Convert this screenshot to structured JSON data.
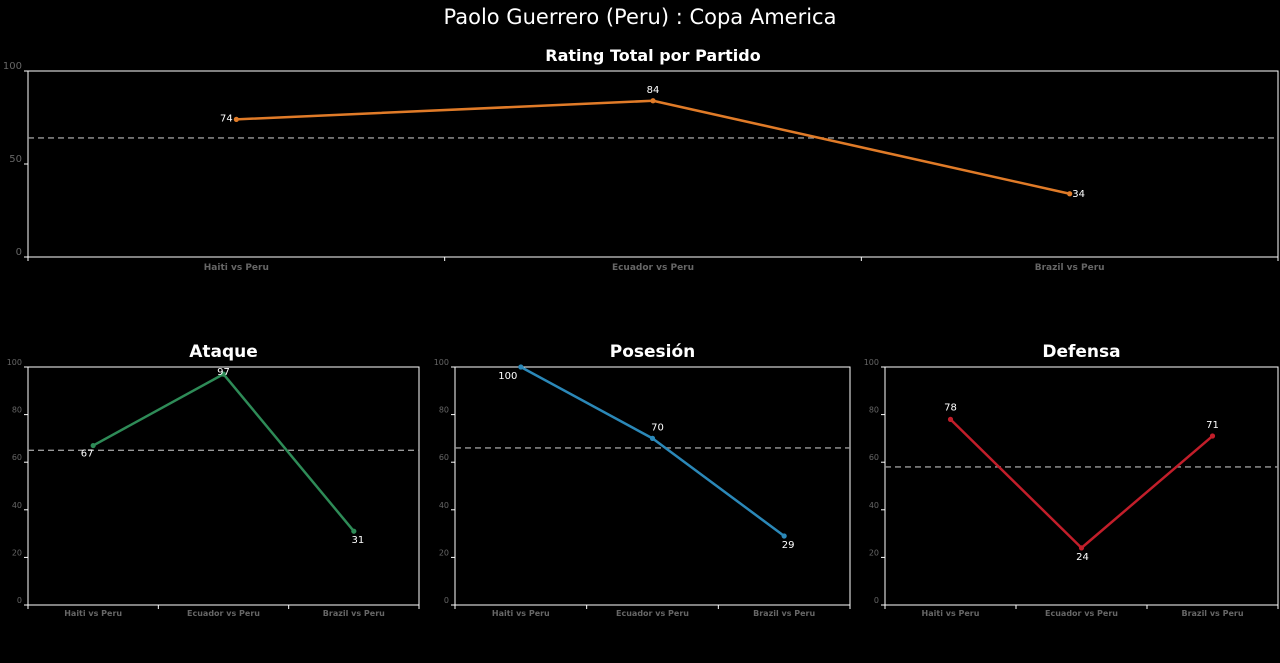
{
  "suptitle": "Paolo Guerrero (Peru) :  Copa  America",
  "colors": {
    "background": "#000000",
    "axes": "#ffffff",
    "tick_label": "#666666",
    "mean_line": "#999999",
    "total": "#e07b28",
    "ataque": "#2e8b57",
    "posesion": "#2b88b8",
    "defensa": "#c21e2a"
  },
  "chart_data": [
    {
      "id": "total",
      "type": "line",
      "title": "Rating Total por Partido",
      "categories": [
        "Haiti vs Peru",
        "Ecuador vs Peru",
        "Brazil vs Peru"
      ],
      "values": [
        74,
        84,
        34
      ],
      "value_labels": [
        "74",
        "84",
        "34"
      ],
      "mean_line": 64,
      "ylim": [
        0,
        100
      ],
      "yticks": [
        0,
        50,
        100
      ],
      "ytick_labels": [
        "0",
        "50",
        "100"
      ],
      "xlabel": "",
      "ylabel": "",
      "color_key": "total"
    },
    {
      "id": "ataque",
      "type": "line",
      "title": "Ataque",
      "categories": [
        "Haiti vs Peru",
        "Ecuador vs Peru",
        "Brazil vs Peru"
      ],
      "values": [
        67,
        97,
        31
      ],
      "value_labels": [
        "67",
        "97",
        "31"
      ],
      "mean_line": 65,
      "ylim": [
        0,
        100
      ],
      "yticks": [
        0,
        20,
        40,
        60,
        80,
        100
      ],
      "ytick_labels": [
        "0",
        "20",
        "40",
        "60",
        "80",
        "100"
      ],
      "xlabel": "",
      "ylabel": "",
      "color_key": "ataque"
    },
    {
      "id": "posesion",
      "type": "line",
      "title": "Posesión",
      "categories": [
        "Haiti vs Peru",
        "Ecuador vs Peru",
        "Brazil vs Peru"
      ],
      "values": [
        100,
        70,
        29
      ],
      "value_labels": [
        "100",
        "70",
        "29"
      ],
      "mean_line": 66,
      "ylim": [
        0,
        100
      ],
      "yticks": [
        0,
        20,
        40,
        60,
        80,
        100
      ],
      "ytick_labels": [
        "0",
        "20",
        "40",
        "60",
        "80",
        "100"
      ],
      "xlabel": "",
      "ylabel": "",
      "color_key": "posesion"
    },
    {
      "id": "defensa",
      "type": "line",
      "title": "Defensa",
      "categories": [
        "Haiti vs Peru",
        "Ecuador vs Peru",
        "Brazil vs Peru"
      ],
      "values": [
        78,
        24,
        71
      ],
      "value_labels": [
        "78",
        "24",
        "71"
      ],
      "mean_line": 58,
      "ylim": [
        0,
        100
      ],
      "yticks": [
        0,
        20,
        40,
        60,
        80,
        100
      ],
      "ytick_labels": [
        "0",
        "20",
        "40",
        "60",
        "80",
        "100"
      ],
      "xlabel": "",
      "ylabel": "",
      "color_key": "defensa"
    }
  ]
}
